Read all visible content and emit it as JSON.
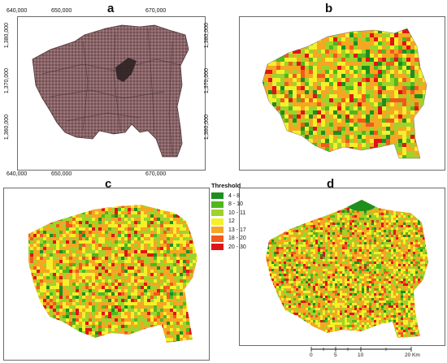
{
  "panels": {
    "a": "a",
    "b": "b",
    "c": "c",
    "d": "d"
  },
  "axes": {
    "x_ticks": [
      "640,000",
      "650,000",
      "670,000"
    ],
    "y_ticks": [
      "1,380,000",
      "1,370,000",
      "1,360,000"
    ]
  },
  "legend": {
    "title": "Threshold",
    "items": [
      {
        "label": "4 - 8",
        "color": "#1e8f1e"
      },
      {
        "label": "8 - 10",
        "color": "#4fb81f"
      },
      {
        "label": "10 - 11",
        "color": "#9ed32a"
      },
      {
        "label": "12",
        "color": "#f4f02a"
      },
      {
        "label": "13 - 17",
        "color": "#f5a623"
      },
      {
        "label": "18 - 20",
        "color": "#f05a1c"
      },
      {
        "label": "20 - 30",
        "color": "#e01414"
      }
    ]
  },
  "scale_bar": {
    "labels": [
      "0",
      "5",
      "10",
      "20 Km"
    ]
  },
  "colors": {
    "satellite_base": "#8a6468",
    "satellite_dark": "#3b2a2e",
    "frame_border": "#6b6b6b"
  }
}
